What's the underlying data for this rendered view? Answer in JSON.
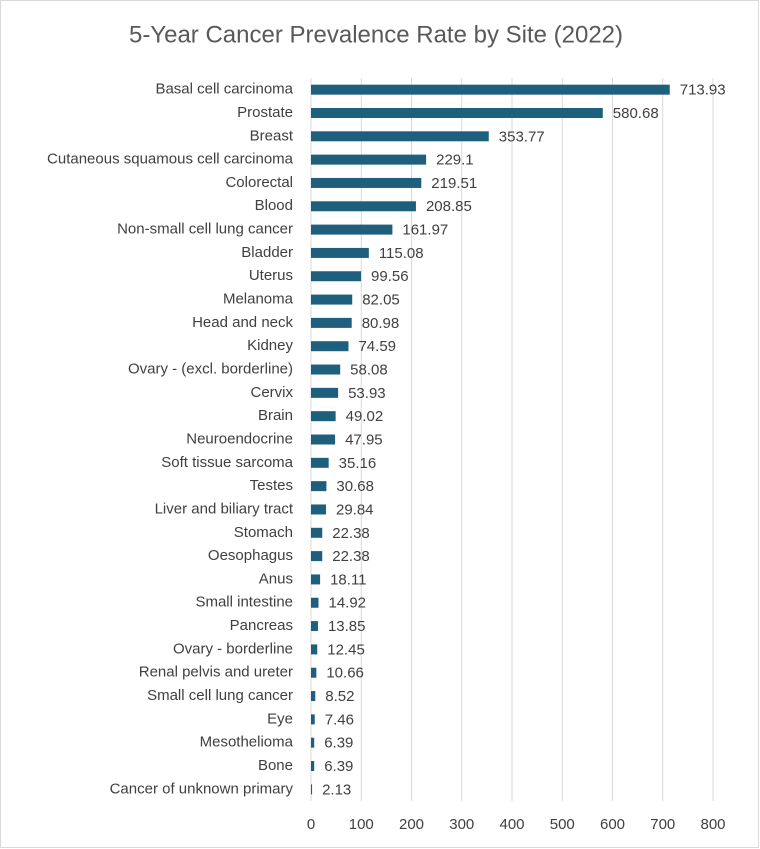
{
  "chart_data": {
    "type": "bar",
    "orientation": "horizontal",
    "title": "5-Year Cancer Prevalence Rate by Site (2022)",
    "categories": [
      "Basal cell carcinoma",
      "Prostate",
      "Breast",
      "Cutaneous squamous cell carcinoma",
      "Colorectal",
      "Blood",
      "Non-small cell lung cancer",
      "Bladder",
      "Uterus",
      "Melanoma",
      "Head and neck",
      "Kidney",
      "Ovary - (excl. borderline)",
      "Cervix",
      "Brain",
      "Neuroendocrine",
      "Soft tissue sarcoma",
      "Testes",
      "Liver and biliary tract",
      "Stomach",
      "Oesophagus",
      "Anus",
      "Small intestine",
      "Pancreas",
      "Ovary - borderline",
      "Renal pelvis and ureter",
      "Small cell lung cancer",
      "Eye",
      "Mesothelioma",
      "Bone",
      "Cancer of unknown primary"
    ],
    "values": [
      713.93,
      580.68,
      353.77,
      229.1,
      219.51,
      208.85,
      161.97,
      115.08,
      99.56,
      82.05,
      80.98,
      74.59,
      58.08,
      53.93,
      49.02,
      47.95,
      35.16,
      30.68,
      29.84,
      22.38,
      22.38,
      18.11,
      14.92,
      13.85,
      12.45,
      10.66,
      8.52,
      7.46,
      6.39,
      6.39,
      2.13
    ],
    "color": "#1f5f7e",
    "xlim": [
      0,
      800
    ],
    "xticks": [
      0,
      100,
      200,
      300,
      400,
      500,
      600,
      700,
      800
    ],
    "grid": true,
    "data_labels": true
  }
}
